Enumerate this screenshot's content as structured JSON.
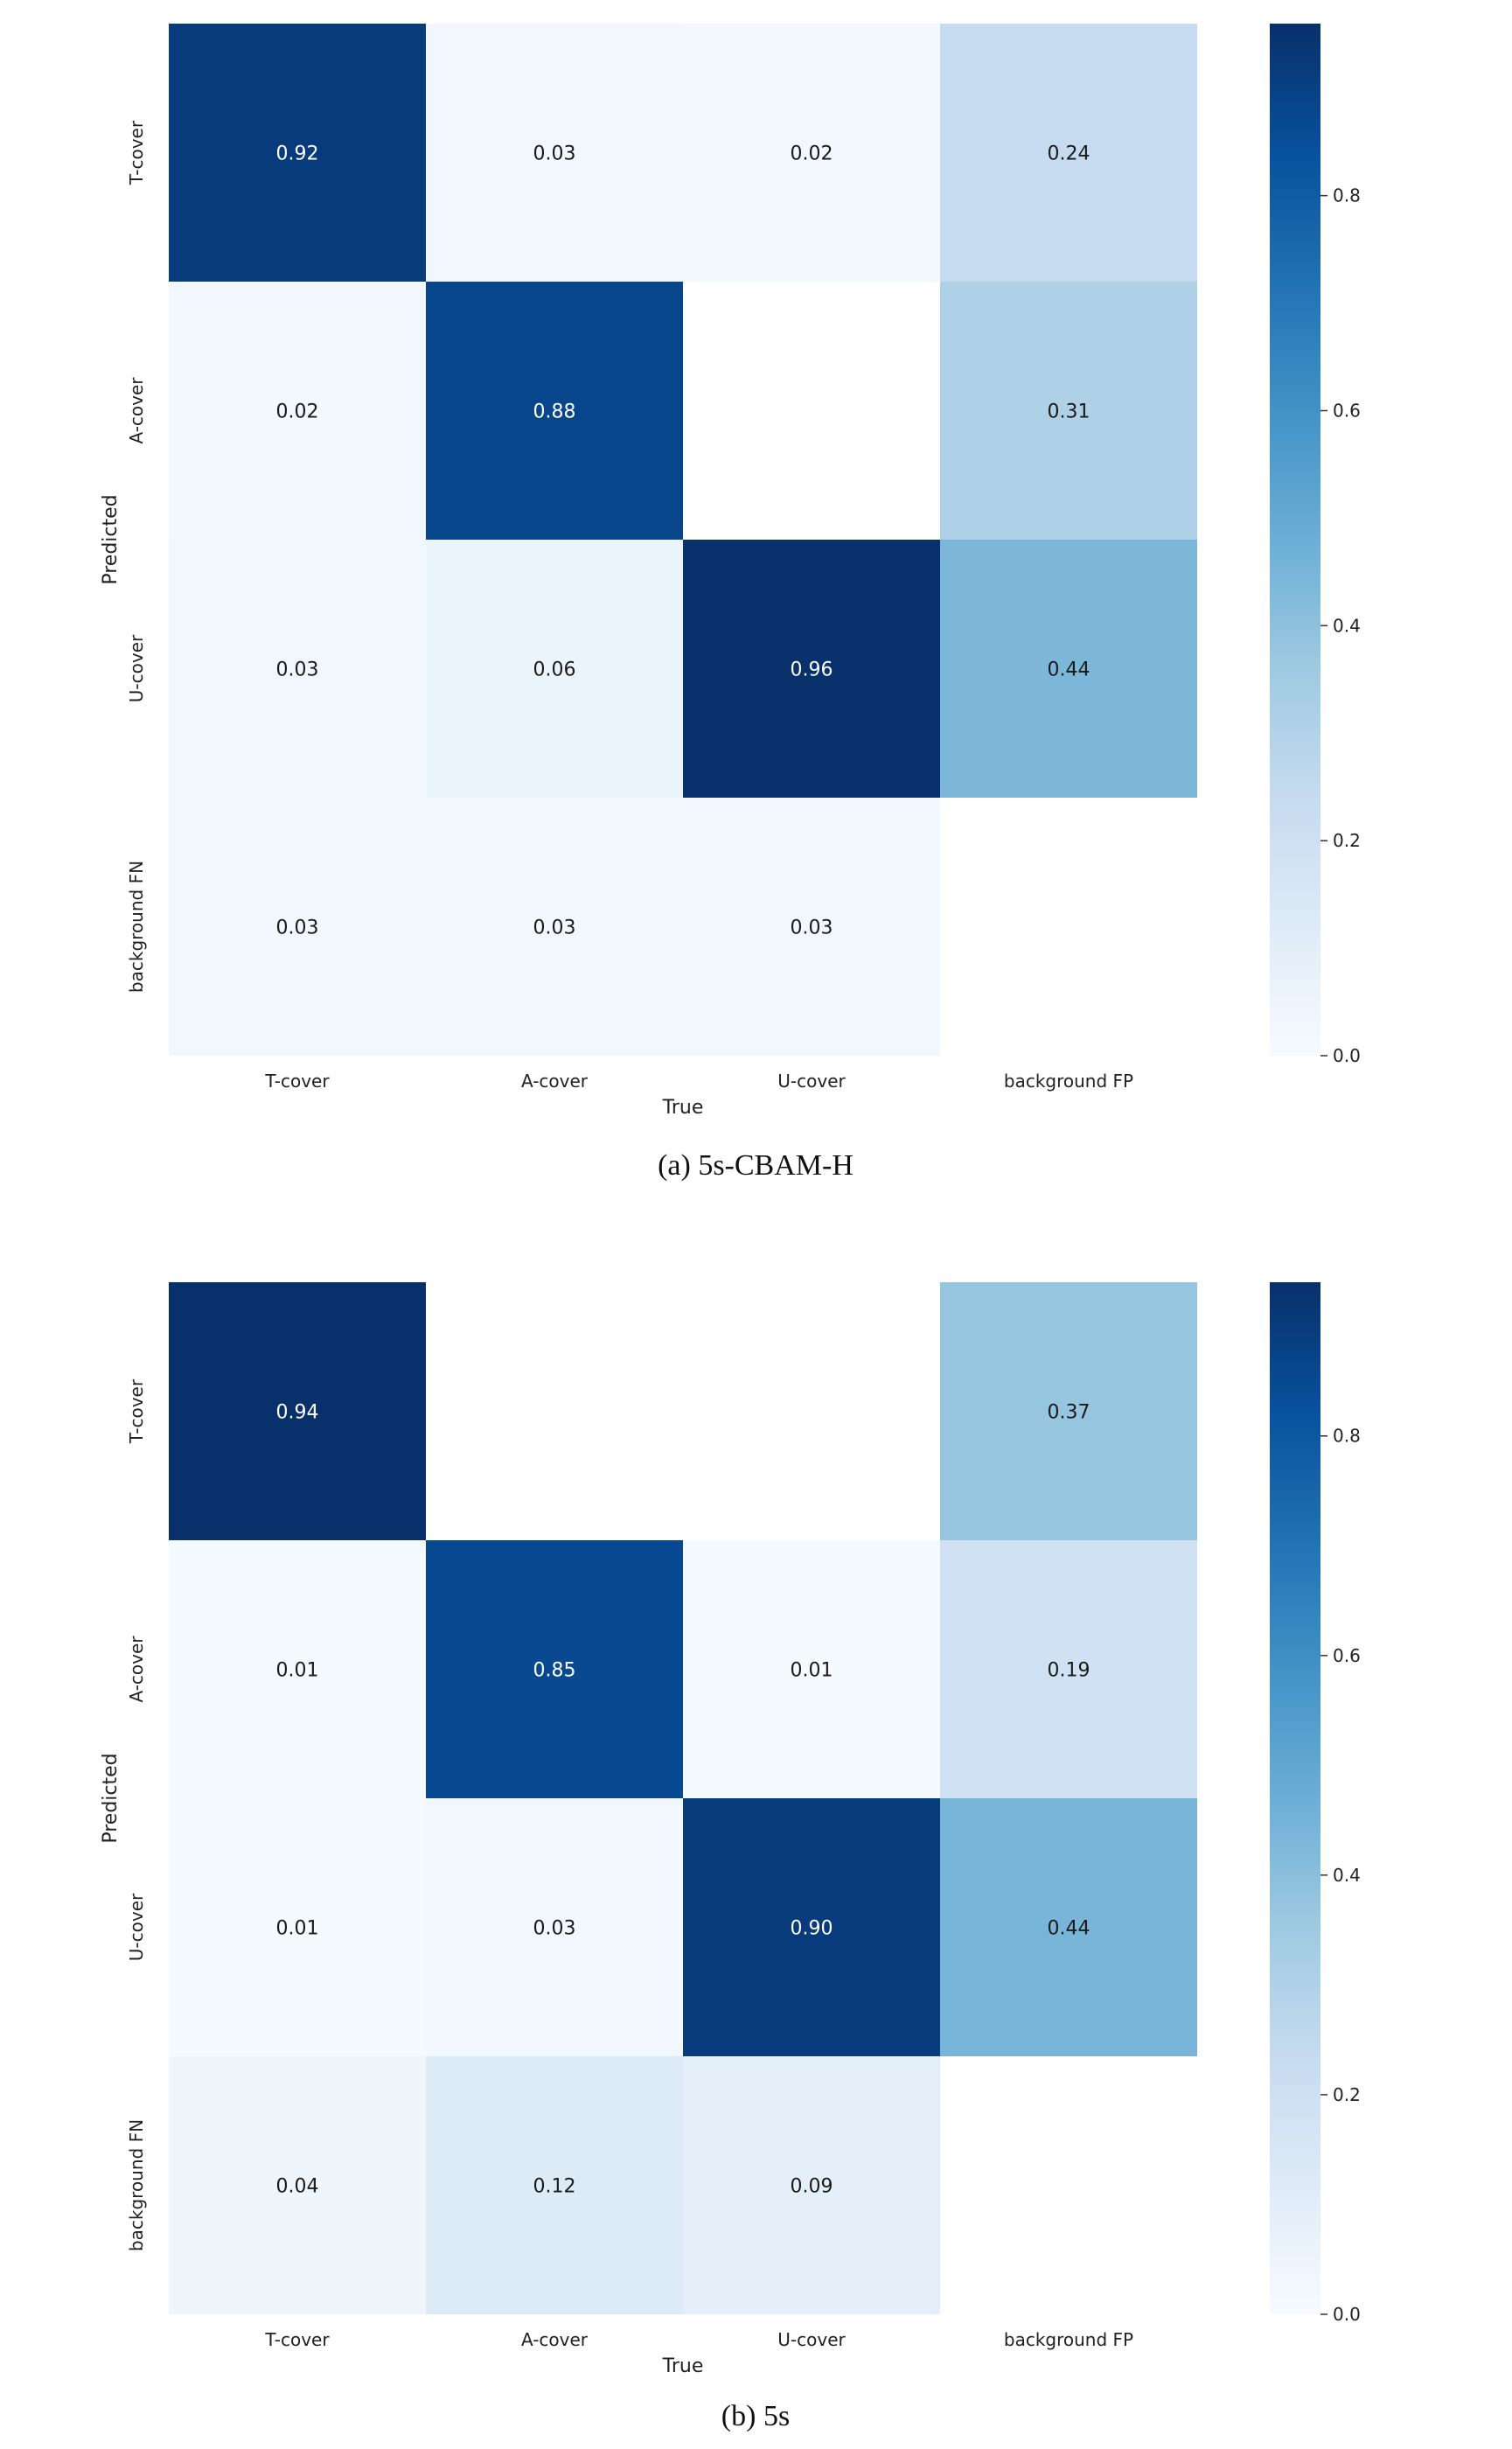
{
  "chart_data": [
    {
      "type": "heatmap",
      "caption": "(a) 5s-CBAM-H",
      "xlabel": "True",
      "ylabel": "Predicted",
      "x_categories": [
        "T-cover",
        "A-cover",
        "U-cover",
        "background FP"
      ],
      "y_categories": [
        "T-cover",
        "A-cover",
        "U-cover",
        "background FN"
      ],
      "values": [
        [
          0.92,
          0.03,
          0.02,
          0.24
        ],
        [
          0.02,
          0.88,
          null,
          0.31
        ],
        [
          0.03,
          0.06,
          0.96,
          0.44
        ],
        [
          0.03,
          0.03,
          0.03,
          null
        ]
      ],
      "colormap": "Blues",
      "colorbar_range": [
        0,
        0.96
      ],
      "colorbar_ticks": [
        "0.0",
        "0.2",
        "0.4",
        "0.6",
        "0.8"
      ]
    },
    {
      "type": "heatmap",
      "caption": "(b) 5s",
      "xlabel": "True",
      "ylabel": "Predicted",
      "x_categories": [
        "T-cover",
        "A-cover",
        "U-cover",
        "background FP"
      ],
      "y_categories": [
        "T-cover",
        "A-cover",
        "U-cover",
        "background FN"
      ],
      "values": [
        [
          0.94,
          null,
          null,
          0.37
        ],
        [
          0.01,
          0.85,
          0.01,
          0.19
        ],
        [
          0.01,
          0.03,
          0.9,
          0.44
        ],
        [
          0.04,
          0.12,
          0.09,
          null
        ]
      ],
      "colormap": "Blues",
      "colorbar_range": [
        0,
        0.94
      ],
      "colorbar_ticks": [
        "0.0",
        "0.2",
        "0.4",
        "0.6",
        "0.8"
      ]
    }
  ]
}
